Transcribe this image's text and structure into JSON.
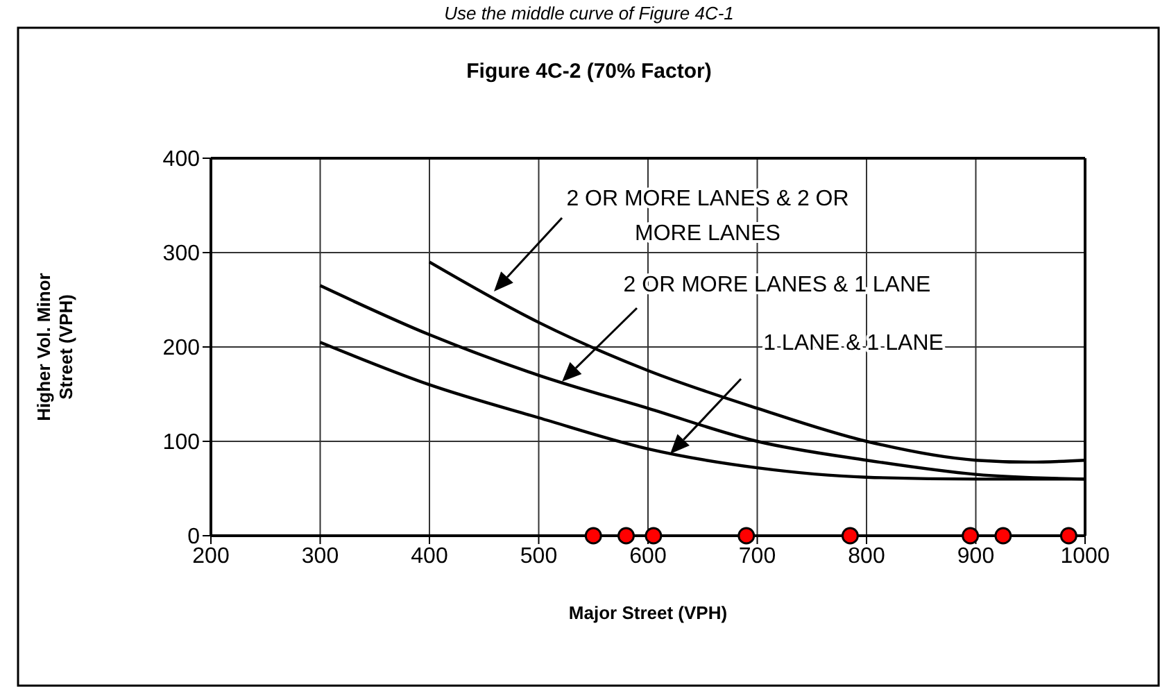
{
  "chart_data": {
    "type": "line",
    "title": "Figure 4C-2 (70% Factor)",
    "xlabel": "Major Street (VPH)",
    "ylabel": "Higher Vol. Minor Street (VPH)",
    "xlim": [
      200,
      1000
    ],
    "xticks": [
      200,
      300,
      400,
      500,
      600,
      700,
      800,
      900,
      1000
    ],
    "ylim": [
      0,
      400
    ],
    "yticks": [
      0,
      100,
      200,
      300,
      400
    ],
    "grid": true,
    "marker": "none",
    "line_style": "solid",
    "series": [
      {
        "color": "#000000",
        "x": [
          400,
          500,
          600,
          700,
          800,
          900,
          950,
          1000
        ],
        "values": [
          290,
          226,
          175,
          135,
          100,
          80,
          78,
          80
        ]
      },
      {
        "color": "#000000",
        "x": [
          300,
          400,
          500,
          600,
          700,
          800,
          900,
          1000
        ],
        "values": [
          265,
          213,
          170,
          135,
          100,
          80,
          65,
          60
        ]
      },
      {
        "color": "#000000",
        "x": [
          300,
          400,
          500,
          600,
          700,
          800,
          900,
          1000
        ],
        "values": [
          205,
          160,
          125,
          92,
          72,
          62,
          60,
          60
        ]
      },
      {
        "type": "scatter",
        "marker": "circle",
        "color": "#ff0000",
        "x": [
          550,
          580,
          605,
          690,
          785,
          895,
          925,
          985
        ],
        "values": [
          0,
          0,
          0,
          0,
          0,
          0,
          0,
          0
        ]
      }
    ],
    "annotations": [
      "Use the middle curve of Figure 4C-1",
      "2 OR MORE LANES & 2 OR MORE LANES",
      "2 OR MORE LANES & 1 LANE",
      "1 LANE & 1 LANE"
    ]
  }
}
